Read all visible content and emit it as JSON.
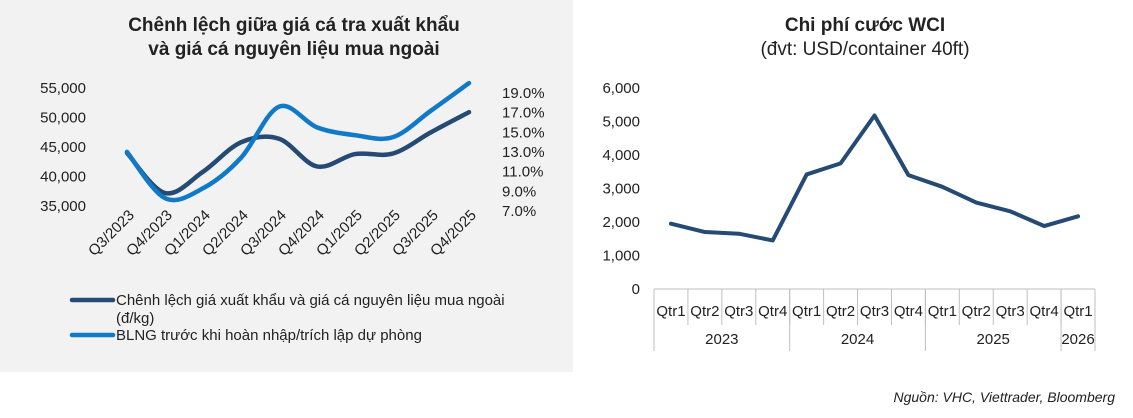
{
  "colors": {
    "series_dark": "#254a73",
    "series_light": "#1079c8",
    "left_background": "#f2f2f2",
    "axis_line": "#bfbfbf"
  },
  "source": "Nguồn: VHC, Viettrader, Bloomberg",
  "chart_data": [
    {
      "type": "line",
      "title": [
        "Chênh lệch giữa giá cá tra xuất khẩu",
        "và giá cá nguyên liệu mua ngoài"
      ],
      "categories": [
        "Q3/2023",
        "Q4/2023",
        "Q1/2024",
        "Q2/2024",
        "Q3/2024",
        "Q4/2024",
        "Q1/2025",
        "Q2/2025",
        "Q3/2025",
        "Q4/2025"
      ],
      "y_left": {
        "ticks": [
          "55,000",
          "50,000",
          "45,000",
          "40,000",
          "35,000"
        ],
        "ylim": [
          35000,
          55000
        ]
      },
      "y_right": {
        "ticks": [
          "19.0%",
          "17.0%",
          "15.0%",
          "13.0%",
          "11.0%",
          "9.0%",
          "7.0%"
        ],
        "ylim": [
          7.0,
          19.0
        ]
      },
      "grid": false,
      "legend_position": "bottom",
      "series": [
        {
          "name": "Chênh lệch giá xuất khẩu và giá cá nguyên liệu mua ngoài (đ/kg)",
          "legend_lines": [
            "Chênh lệch giá xuất khẩu và giá cá nguyên liệu mua ngoài",
            "(đ/kg)"
          ],
          "axis": "left",
          "color": "#254a73",
          "values": [
            44000,
            37200,
            40800,
            45800,
            46400,
            41700,
            43800,
            43900,
            47500,
            50900
          ]
        },
        {
          "name": "BLNG trước khi hoàn nhập/trích lập dự phòng",
          "legend_lines": [
            "BLNG trước khi hoàn nhập/trích lập dự phòng"
          ],
          "axis": "right",
          "color": "#1079c8",
          "values": [
            12.5,
            7.8,
            8.8,
            11.9,
            17.1,
            15.0,
            14.2,
            14.0,
            16.7,
            19.5
          ]
        }
      ]
    },
    {
      "type": "line",
      "title": "Chi phí cước WCI",
      "subtitle": "(đvt: USD/container 40ft)",
      "categories": [
        "Qtr1",
        "Qtr2",
        "Qtr3",
        "Qtr4",
        "Qtr1",
        "Qtr2",
        "Qtr3",
        "Qtr4",
        "Qtr1",
        "Qtr2",
        "Qtr3",
        "Qtr4",
        "Qtr1"
      ],
      "year_groups": [
        {
          "label": "2023",
          "count": 4
        },
        {
          "label": "2024",
          "count": 4
        },
        {
          "label": "2025",
          "count": 4
        },
        {
          "label": "2026",
          "count": 1
        }
      ],
      "y_ticks": [
        "6,000",
        "5,000",
        "4,000",
        "3,000",
        "2,000",
        "1,000",
        "0"
      ],
      "ylim": [
        0,
        6000
      ],
      "grid": false,
      "series": [
        {
          "color": "#254a73",
          "values": [
            1950,
            1700,
            1650,
            1450,
            3420,
            3750,
            5180,
            3400,
            3050,
            2580,
            2320,
            1880,
            2170
          ]
        }
      ]
    }
  ]
}
